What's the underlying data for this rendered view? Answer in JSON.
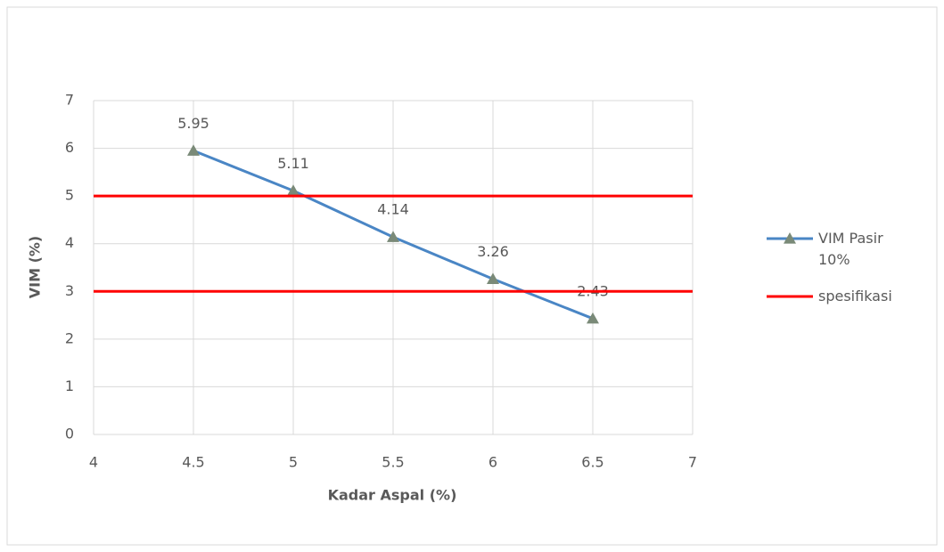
{
  "chart_data": {
    "type": "line",
    "x_label": "Kadar Aspal (%)",
    "y_label": "VIM (%)",
    "series": [
      {
        "name": "VIM Pasir 10%",
        "color": "#4a86c5",
        "marker_color": "#7a8a78",
        "x": [
          4.5,
          5,
          5.5,
          6,
          6.5
        ],
        "values": [
          5.95,
          5.11,
          4.14,
          3.26,
          2.43
        ]
      },
      {
        "name": "spesifikasi",
        "color": "#ff0000",
        "hlines": [
          5,
          3
        ]
      }
    ],
    "xlim": [
      4,
      7
    ],
    "xticks": [
      4,
      4.5,
      5,
      5.5,
      6,
      6.5,
      7
    ],
    "ylim": [
      0,
      7
    ],
    "yticks": [
      0,
      1,
      2,
      3,
      4,
      5,
      6,
      7
    ],
    "grid": true,
    "legend": "right"
  }
}
